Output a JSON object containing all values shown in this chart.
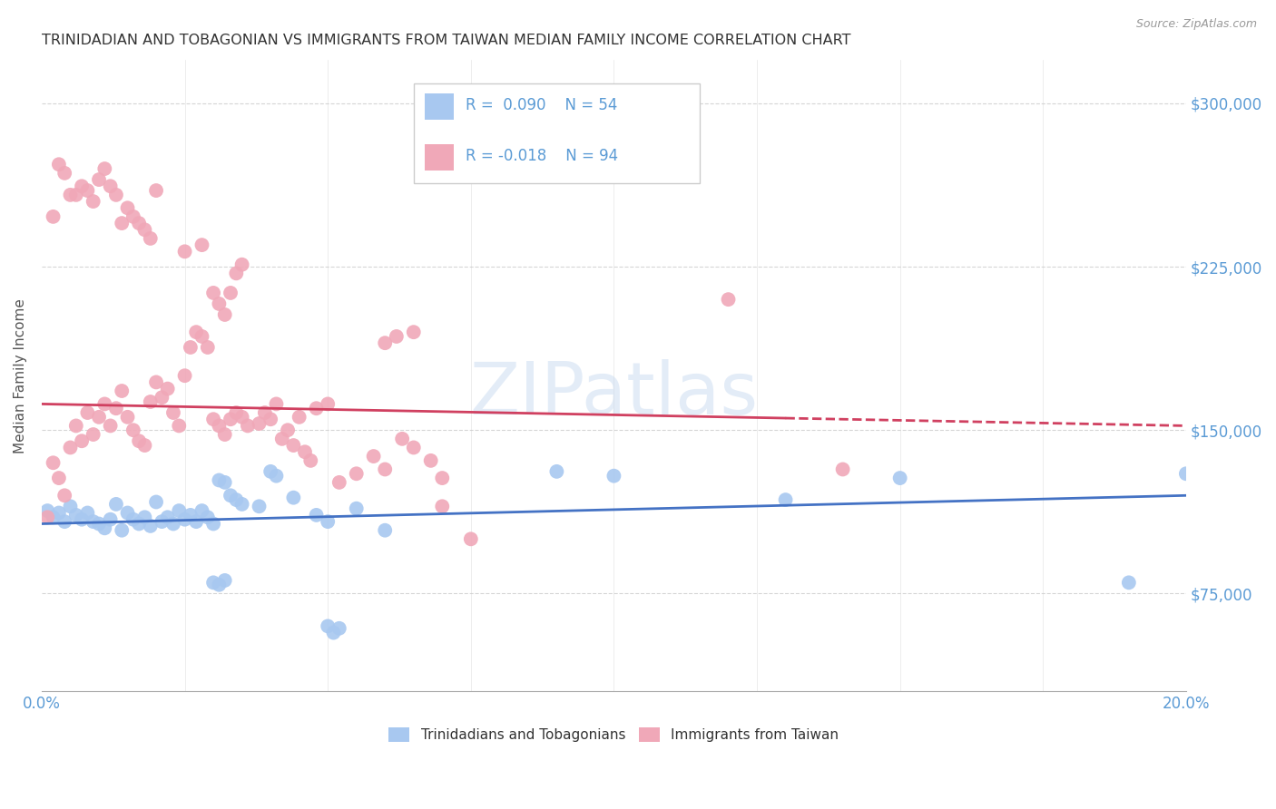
{
  "title": "TRINIDADIAN AND TOBAGONIAN VS IMMIGRANTS FROM TAIWAN MEDIAN FAMILY INCOME CORRELATION CHART",
  "source": "Source: ZipAtlas.com",
  "ylabel": "Median Family Income",
  "yticks": [
    75000,
    150000,
    225000,
    300000
  ],
  "ytick_labels": [
    "$75,000",
    "$150,000",
    "$225,000",
    "$300,000"
  ],
  "xlim": [
    0.0,
    0.2
  ],
  "ylim": [
    30000,
    320000
  ],
  "watermark": "ZIPatlas",
  "blue_color": "#a8c8f0",
  "pink_color": "#f0a8b8",
  "line_blue": "#4472c4",
  "line_pink": "#d04060",
  "axis_label_color": "#5b9bd5",
  "title_color": "#333333",
  "grid_color": "#cccccc",
  "blue_scatter": [
    [
      0.001,
      113000
    ],
    [
      0.002,
      110000
    ],
    [
      0.003,
      112000
    ],
    [
      0.004,
      108000
    ],
    [
      0.005,
      115000
    ],
    [
      0.006,
      111000
    ],
    [
      0.007,
      109000
    ],
    [
      0.008,
      112000
    ],
    [
      0.009,
      108000
    ],
    [
      0.01,
      107000
    ],
    [
      0.011,
      105000
    ],
    [
      0.012,
      109000
    ],
    [
      0.013,
      116000
    ],
    [
      0.014,
      104000
    ],
    [
      0.015,
      112000
    ],
    [
      0.016,
      109000
    ],
    [
      0.017,
      107000
    ],
    [
      0.018,
      110000
    ],
    [
      0.019,
      106000
    ],
    [
      0.02,
      117000
    ],
    [
      0.021,
      108000
    ],
    [
      0.022,
      110000
    ],
    [
      0.023,
      107000
    ],
    [
      0.024,
      113000
    ],
    [
      0.025,
      109000
    ],
    [
      0.026,
      111000
    ],
    [
      0.027,
      108000
    ],
    [
      0.028,
      113000
    ],
    [
      0.029,
      110000
    ],
    [
      0.03,
      107000
    ],
    [
      0.031,
      127000
    ],
    [
      0.032,
      126000
    ],
    [
      0.033,
      120000
    ],
    [
      0.034,
      118000
    ],
    [
      0.035,
      116000
    ],
    [
      0.038,
      115000
    ],
    [
      0.04,
      131000
    ],
    [
      0.041,
      129000
    ],
    [
      0.044,
      119000
    ],
    [
      0.048,
      111000
    ],
    [
      0.05,
      108000
    ],
    [
      0.055,
      114000
    ],
    [
      0.06,
      104000
    ],
    [
      0.03,
      80000
    ],
    [
      0.031,
      79000
    ],
    [
      0.032,
      81000
    ],
    [
      0.05,
      60000
    ],
    [
      0.051,
      57000
    ],
    [
      0.052,
      59000
    ],
    [
      0.09,
      131000
    ],
    [
      0.1,
      129000
    ],
    [
      0.13,
      118000
    ],
    [
      0.15,
      128000
    ],
    [
      0.19,
      80000
    ],
    [
      0.2,
      130000
    ]
  ],
  "pink_scatter": [
    [
      0.001,
      110000
    ],
    [
      0.002,
      135000
    ],
    [
      0.003,
      128000
    ],
    [
      0.004,
      120000
    ],
    [
      0.005,
      142000
    ],
    [
      0.006,
      152000
    ],
    [
      0.007,
      145000
    ],
    [
      0.008,
      158000
    ],
    [
      0.009,
      148000
    ],
    [
      0.01,
      156000
    ],
    [
      0.011,
      162000
    ],
    [
      0.012,
      152000
    ],
    [
      0.013,
      160000
    ],
    [
      0.014,
      168000
    ],
    [
      0.015,
      156000
    ],
    [
      0.016,
      150000
    ],
    [
      0.017,
      145000
    ],
    [
      0.018,
      143000
    ],
    [
      0.019,
      163000
    ],
    [
      0.02,
      172000
    ],
    [
      0.021,
      165000
    ],
    [
      0.022,
      169000
    ],
    [
      0.023,
      158000
    ],
    [
      0.024,
      152000
    ],
    [
      0.025,
      175000
    ],
    [
      0.026,
      188000
    ],
    [
      0.027,
      195000
    ],
    [
      0.028,
      193000
    ],
    [
      0.029,
      188000
    ],
    [
      0.03,
      155000
    ],
    [
      0.031,
      152000
    ],
    [
      0.032,
      148000
    ],
    [
      0.033,
      155000
    ],
    [
      0.034,
      158000
    ],
    [
      0.035,
      156000
    ],
    [
      0.036,
      152000
    ],
    [
      0.038,
      153000
    ],
    [
      0.039,
      158000
    ],
    [
      0.04,
      155000
    ],
    [
      0.041,
      162000
    ],
    [
      0.042,
      146000
    ],
    [
      0.043,
      150000
    ],
    [
      0.044,
      143000
    ],
    [
      0.045,
      156000
    ],
    [
      0.046,
      140000
    ],
    [
      0.047,
      136000
    ],
    [
      0.048,
      160000
    ],
    [
      0.05,
      162000
    ],
    [
      0.052,
      126000
    ],
    [
      0.055,
      130000
    ],
    [
      0.058,
      138000
    ],
    [
      0.06,
      132000
    ],
    [
      0.063,
      146000
    ],
    [
      0.065,
      142000
    ],
    [
      0.068,
      136000
    ],
    [
      0.07,
      128000
    ],
    [
      0.03,
      213000
    ],
    [
      0.031,
      208000
    ],
    [
      0.032,
      203000
    ],
    [
      0.033,
      213000
    ],
    [
      0.034,
      222000
    ],
    [
      0.035,
      226000
    ],
    [
      0.002,
      248000
    ],
    [
      0.003,
      272000
    ],
    [
      0.004,
      268000
    ],
    [
      0.005,
      258000
    ],
    [
      0.006,
      258000
    ],
    [
      0.007,
      262000
    ],
    [
      0.008,
      260000
    ],
    [
      0.009,
      255000
    ],
    [
      0.01,
      265000
    ],
    [
      0.011,
      270000
    ],
    [
      0.012,
      262000
    ],
    [
      0.013,
      258000
    ],
    [
      0.014,
      245000
    ],
    [
      0.015,
      252000
    ],
    [
      0.016,
      248000
    ],
    [
      0.017,
      245000
    ],
    [
      0.018,
      242000
    ],
    [
      0.019,
      238000
    ],
    [
      0.02,
      260000
    ],
    [
      0.025,
      232000
    ],
    [
      0.028,
      235000
    ],
    [
      0.07,
      115000
    ],
    [
      0.075,
      100000
    ],
    [
      0.06,
      190000
    ],
    [
      0.062,
      193000
    ],
    [
      0.065,
      195000
    ],
    [
      0.12,
      210000
    ],
    [
      0.14,
      132000
    ]
  ]
}
